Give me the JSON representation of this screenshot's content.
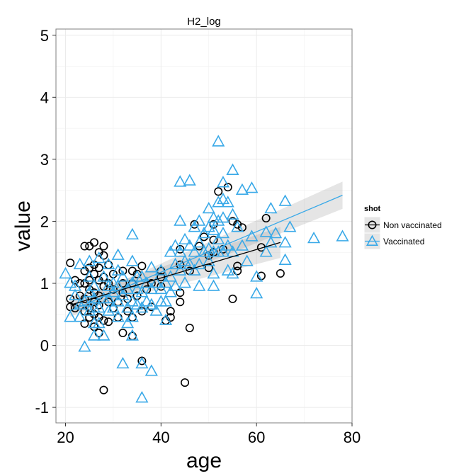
{
  "chart_data": {
    "type": "scatter",
    "title": "H2_log",
    "xlabel": "age",
    "ylabel": "value",
    "xlim": [
      18,
      80
    ],
    "ylim": [
      -1.25,
      5.1
    ],
    "xticks": [
      20,
      40,
      60,
      80
    ],
    "yticks": [
      -1,
      0,
      1,
      2,
      3,
      4,
      5
    ],
    "grid": true,
    "legend": {
      "title": "shot",
      "placement": "right"
    },
    "series": [
      {
        "name": "Non vaccinated",
        "marker": "circle",
        "color": "#000000",
        "fit": {
          "x": [
            21,
            65
          ],
          "y": [
            0.65,
            1.66
          ],
          "band": [
            0.12,
            0.25
          ]
        },
        "points": [
          [
            21,
            1.33
          ],
          [
            21,
            0.75
          ],
          [
            21,
            0.62
          ],
          [
            22,
            1.05
          ],
          [
            22,
            0.6
          ],
          [
            23,
            1.0
          ],
          [
            23,
            0.8
          ],
          [
            24,
            1.6
          ],
          [
            24,
            1.2
          ],
          [
            24,
            1.0
          ],
          [
            24,
            0.75
          ],
          [
            24,
            0.55
          ],
          [
            24,
            0.35
          ],
          [
            25,
            1.25
          ],
          [
            25,
            1.05
          ],
          [
            25,
            0.9
          ],
          [
            25,
            0.6
          ],
          [
            25,
            0.45
          ],
          [
            25,
            1.6
          ],
          [
            26,
            1.66
          ],
          [
            26,
            1.3
          ],
          [
            26,
            1.15
          ],
          [
            26,
            0.85
          ],
          [
            26,
            0.7
          ],
          [
            26,
            0.5
          ],
          [
            26,
            0.3
          ],
          [
            27,
            1.5
          ],
          [
            27,
            1.25
          ],
          [
            27,
            1.05
          ],
          [
            27,
            0.8
          ],
          [
            27,
            0.65
          ],
          [
            27,
            0.45
          ],
          [
            27,
            0.2
          ],
          [
            28,
            1.6
          ],
          [
            28,
            1.45
          ],
          [
            28,
            1.1
          ],
          [
            28,
            0.95
          ],
          [
            28,
            0.4
          ],
          [
            28,
            -0.72
          ],
          [
            29,
            1.3
          ],
          [
            29,
            1.0
          ],
          [
            29,
            0.7
          ],
          [
            29,
            0.38
          ],
          [
            30,
            1.15
          ],
          [
            30,
            0.9
          ],
          [
            30,
            0.6
          ],
          [
            31,
            0.7
          ],
          [
            31,
            0.45
          ],
          [
            32,
            1.2
          ],
          [
            32,
            1.0
          ],
          [
            32,
            0.85
          ],
          [
            32,
            0.2
          ],
          [
            33,
            0.75
          ],
          [
            33,
            0.55
          ],
          [
            34,
            1.2
          ],
          [
            34,
            1.0
          ],
          [
            34,
            0.45
          ],
          [
            34,
            0.15
          ],
          [
            35,
            0.8
          ],
          [
            35,
            1.15
          ],
          [
            36,
            1.28
          ],
          [
            36,
            0.55
          ],
          [
            36,
            -0.25
          ],
          [
            37,
            0.9
          ],
          [
            38,
            1.0
          ],
          [
            38,
            0.62
          ],
          [
            40,
            1.2
          ],
          [
            40,
            1.1
          ],
          [
            40,
            0.95
          ],
          [
            41,
            0.4
          ],
          [
            42,
            0.55
          ],
          [
            42,
            0.45
          ],
          [
            44,
            1.55
          ],
          [
            44,
            1.3
          ],
          [
            44,
            0.85
          ],
          [
            44,
            0.7
          ],
          [
            45,
            -0.6
          ],
          [
            46,
            1.2
          ],
          [
            46,
            0.28
          ],
          [
            47,
            1.95
          ],
          [
            48,
            1.6
          ],
          [
            49,
            1.75
          ],
          [
            50,
            1.45
          ],
          [
            50,
            1.25
          ],
          [
            51,
            1.5
          ],
          [
            51,
            1.7
          ],
          [
            51,
            1.95
          ],
          [
            52,
            2.48
          ],
          [
            53,
            1.55
          ],
          [
            54,
            2.55
          ],
          [
            55,
            2.0
          ],
          [
            55,
            0.75
          ],
          [
            56,
            1.95
          ],
          [
            56,
            1.28
          ],
          [
            56,
            1.2
          ],
          [
            57,
            1.9
          ],
          [
            61,
            1.58
          ],
          [
            61,
            1.12
          ],
          [
            62,
            2.05
          ],
          [
            65,
            1.16
          ]
        ]
      },
      {
        "name": "Vaccinated",
        "marker": "triangle",
        "color": "#39A9E8",
        "fit": {
          "x": [
            21,
            78
          ],
          "y": [
            0.56,
            2.42
          ],
          "band": [
            0.1,
            0.22
          ]
        },
        "points": [
          [
            20,
            1.15
          ],
          [
            21,
            1.0
          ],
          [
            21,
            0.45
          ],
          [
            22,
            0.95
          ],
          [
            22,
            0.8
          ],
          [
            23,
            1.3
          ],
          [
            23,
            0.65
          ],
          [
            23,
            0.45
          ],
          [
            24,
            -0.03
          ],
          [
            24,
            0.7
          ],
          [
            25,
            1.35
          ],
          [
            25,
            1.1
          ],
          [
            25,
            0.85
          ],
          [
            25,
            0.55
          ],
          [
            26,
            0.95
          ],
          [
            26,
            0.75
          ],
          [
            26,
            0.6
          ],
          [
            26,
            0.35
          ],
          [
            26,
            0.15
          ],
          [
            27,
            1.4
          ],
          [
            27,
            0.6
          ],
          [
            27,
            0.35
          ],
          [
            28,
            1.1
          ],
          [
            28,
            0.75
          ],
          [
            28,
            0.15
          ],
          [
            29,
            1.3
          ],
          [
            29,
            0.95
          ],
          [
            29,
            0.75
          ],
          [
            29,
            0.55
          ],
          [
            30,
            1.0
          ],
          [
            30,
            0.85
          ],
          [
            30,
            0.6
          ],
          [
            31,
            1.45
          ],
          [
            31,
            1.2
          ],
          [
            31,
            0.95
          ],
          [
            31,
            0.7
          ],
          [
            31,
            0.45
          ],
          [
            32,
            1.1
          ],
          [
            32,
            0.8
          ],
          [
            32,
            -0.3
          ],
          [
            33,
            0.9
          ],
          [
            33,
            0.6
          ],
          [
            33,
            0.35
          ],
          [
            34,
            1.78
          ],
          [
            34,
            1.35
          ],
          [
            34,
            1.0
          ],
          [
            34,
            0.7
          ],
          [
            34,
            0.45
          ],
          [
            34,
            0.15
          ],
          [
            35,
            1.1
          ],
          [
            35,
            0.9
          ],
          [
            35,
            0.65
          ],
          [
            36,
            1.1
          ],
          [
            36,
            0.85
          ],
          [
            36,
            0.6
          ],
          [
            36,
            -0.3
          ],
          [
            36,
            -0.85
          ],
          [
            37,
            1.0
          ],
          [
            37,
            0.7
          ],
          [
            38,
            1.25
          ],
          [
            38,
            0.9
          ],
          [
            38,
            0.65
          ],
          [
            38,
            -0.42
          ],
          [
            39,
            1.0
          ],
          [
            39,
            0.55
          ],
          [
            40,
            1.2
          ],
          [
            40,
            0.9
          ],
          [
            40,
            0.7
          ],
          [
            41,
            1.0
          ],
          [
            41,
            0.7
          ],
          [
            41,
            0.4
          ],
          [
            42,
            1.5
          ],
          [
            42,
            1.1
          ],
          [
            42,
            0.85
          ],
          [
            43,
            1.6
          ],
          [
            43,
            1.3
          ],
          [
            43,
            0.95
          ],
          [
            44,
            2.63
          ],
          [
            44,
            2.0
          ],
          [
            44,
            1.5
          ],
          [
            44,
            1.2
          ],
          [
            45,
            1.7
          ],
          [
            45,
            1.35
          ],
          [
            45,
            1.0
          ],
          [
            46,
            2.65
          ],
          [
            46,
            1.6
          ],
          [
            46,
            1.3
          ],
          [
            47,
            1.9
          ],
          [
            47,
            1.5
          ],
          [
            47,
            1.2
          ],
          [
            48,
            2.0
          ],
          [
            48,
            1.65
          ],
          [
            48,
            1.3
          ],
          [
            48,
            0.95
          ],
          [
            49,
            1.8
          ],
          [
            49,
            1.5
          ],
          [
            50,
            2.2
          ],
          [
            50,
            1.9
          ],
          [
            50,
            1.55
          ],
          [
            50,
            1.35
          ],
          [
            51,
            2.05
          ],
          [
            51,
            1.85
          ],
          [
            51,
            1.5
          ],
          [
            51,
            1.15
          ],
          [
            51,
            0.95
          ],
          [
            52,
            3.28
          ],
          [
            52,
            2.3
          ],
          [
            52,
            2.0
          ],
          [
            52,
            1.7
          ],
          [
            52,
            1.5
          ],
          [
            53,
            2.62
          ],
          [
            53,
            2.35
          ],
          [
            53,
            2.05
          ],
          [
            53,
            1.8
          ],
          [
            53,
            1.5
          ],
          [
            54,
            2.3
          ],
          [
            54,
            1.6
          ],
          [
            54,
            1.2
          ],
          [
            55,
            2.82
          ],
          [
            55,
            2.1
          ],
          [
            55,
            1.5
          ],
          [
            55,
            1.15
          ],
          [
            56,
            1.9
          ],
          [
            57,
            2.5
          ],
          [
            57,
            1.6
          ],
          [
            58,
            1.35
          ],
          [
            59,
            2.53
          ],
          [
            59,
            1.75
          ],
          [
            60,
            1.1
          ],
          [
            60,
            0.83
          ],
          [
            62,
            1.82
          ],
          [
            62,
            1.5
          ],
          [
            63,
            2.2
          ],
          [
            63,
            1.65
          ],
          [
            64,
            1.8
          ],
          [
            66,
            2.32
          ],
          [
            66,
            1.65
          ],
          [
            66,
            1.37
          ],
          [
            67,
            1.9
          ],
          [
            72,
            1.72
          ],
          [
            78,
            1.75
          ]
        ]
      }
    ]
  }
}
